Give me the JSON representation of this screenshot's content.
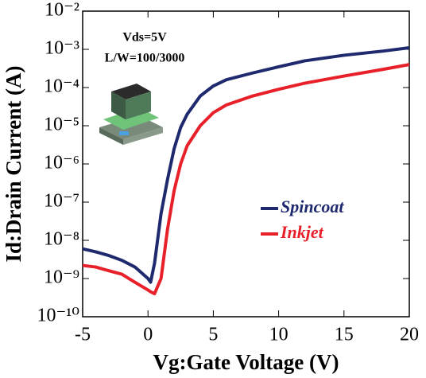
{
  "chart_data": {
    "type": "line",
    "x_label": "Vg:Gate Voltage (V)",
    "y_label": "Id:Drain Current (A)",
    "annotations": [
      "Vds=5V",
      "L/W=100/3000"
    ],
    "log_y": true,
    "legend": "right",
    "xlim": [
      -5,
      20
    ],
    "xticks": [
      -5,
      0,
      5,
      10,
      15,
      20
    ],
    "ylim": [
      1e-10,
      0.01
    ],
    "yticks": [
      {
        "value": 1e-10,
        "label": "10⁻¹⁰"
      },
      {
        "value": 1e-09,
        "label": "10⁻⁹"
      },
      {
        "value": 1e-08,
        "label": "10⁻⁸"
      },
      {
        "value": 1e-07,
        "label": "10⁻⁷"
      },
      {
        "value": 1e-06,
        "label": "10⁻⁶"
      },
      {
        "value": 1e-05,
        "label": "10⁻⁵"
      },
      {
        "value": 0.0001,
        "label": "10⁻⁴"
      },
      {
        "value": 0.001,
        "label": "10⁻³"
      },
      {
        "value": 0.01,
        "label": "10⁻²"
      }
    ],
    "x": [
      -5,
      -4,
      -3,
      -2,
      -1,
      0,
      0.2,
      0.5,
      1,
      1.5,
      2,
      2.5,
      3,
      4,
      5,
      6,
      8,
      10,
      12,
      15,
      18,
      20
    ],
    "series": [
      {
        "name": "Spincoat",
        "color": "#1f2a6e",
        "values": [
          6e-09,
          5e-09,
          4e-09,
          3e-09,
          2e-09,
          1e-09,
          8e-10,
          2.5e-09,
          5e-08,
          4e-07,
          2.5e-06,
          9e-06,
          2e-05,
          6e-05,
          0.00011,
          0.00016,
          0.00024,
          0.00035,
          0.0005,
          0.0007,
          0.0009,
          0.0011
        ]
      },
      {
        "name": "Inkjet",
        "color": "#e8202a",
        "values": [
          2.2e-09,
          2e-09,
          1.6e-09,
          1.3e-09,
          8e-10,
          5e-10,
          4.5e-10,
          4e-10,
          1e-09,
          2e-08,
          2e-07,
          1e-06,
          3e-06,
          1e-05,
          2.2e-05,
          3.5e-05,
          6e-05,
          9e-05,
          0.00013,
          0.0002,
          0.0003,
          0.0004
        ]
      }
    ]
  }
}
